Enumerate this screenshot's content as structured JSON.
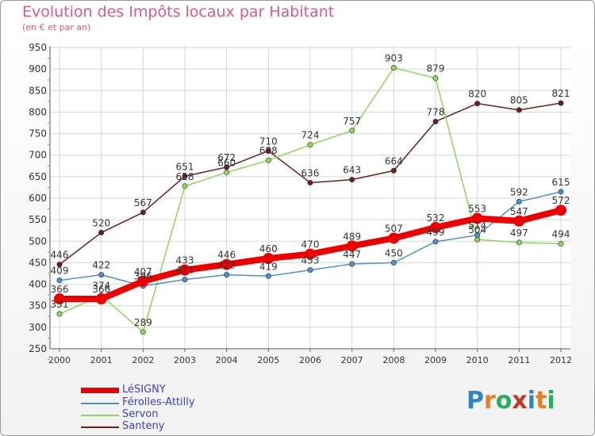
{
  "header": {
    "title": "Evolution des Impôts locaux par Habitant",
    "subtitle": "(en € et par an)"
  },
  "logo": {
    "text": "Proxiti",
    "letters": [
      "P",
      "r",
      "o",
      "x",
      "i",
      "t",
      "i"
    ],
    "colors": [
      "#2e86c1",
      "#e67e22",
      "#27ae60",
      "#c0392b",
      "#2e86c1",
      "#e67e22",
      "#27ae60"
    ]
  },
  "chart_data": {
    "type": "line",
    "title": "Evolution des Impôts locaux par Habitant",
    "subtitle": "(en € et par an)",
    "xlabel": "",
    "ylabel": "",
    "x": [
      "2000",
      "2001",
      "2002",
      "2003",
      "2004",
      "2005",
      "2006",
      "2007",
      "2008",
      "2009",
      "2010",
      "2011",
      "2012"
    ],
    "ylim": [
      250,
      950
    ],
    "yticks": [
      250,
      300,
      350,
      400,
      450,
      500,
      550,
      600,
      650,
      700,
      750,
      800,
      850,
      900,
      950
    ],
    "grid": true,
    "legend_position": "bottom-left",
    "series": [
      {
        "name": "LéSIGNY",
        "color": "#ee0000",
        "values": [
          366,
          366,
          407,
          433,
          446,
          460,
          470,
          489,
          507,
          532,
          553,
          547,
          572
        ],
        "labels": [
          "366",
          "366",
          "407",
          "433",
          "446",
          "460",
          "470",
          "489",
          "507",
          "532",
          "553",
          "547",
          "572"
        ]
      },
      {
        "name": "Férolles-Attilly",
        "color": "#4f8fcf",
        "values": [
          409,
          422,
          396,
          411,
          422,
          419,
          433,
          447,
          450,
          499,
          514,
          592,
          615
        ],
        "labels": [
          "409",
          "422",
          "396",
          "411",
          "422",
          "419",
          "433",
          "447",
          "450",
          "499",
          "514",
          "592",
          "615"
        ]
      },
      {
        "name": "Servon",
        "color": "#8cd85a",
        "values": [
          331,
          374,
          289,
          628,
          660,
          688,
          724,
          757,
          903,
          879,
          504,
          497,
          494
        ],
        "labels": [
          "331",
          "374",
          "289",
          "628",
          "660",
          "688",
          "724",
          "757",
          "903",
          "879",
          "504",
          "497",
          "494"
        ]
      },
      {
        "name": "Santeny",
        "color": "#6b1f1f",
        "values": [
          446,
          520,
          567,
          651,
          672,
          710,
          636,
          643,
          664,
          778,
          820,
          805,
          821
        ],
        "labels": [
          "446",
          "520",
          "567",
          "651",
          "672",
          "710",
          "636",
          "643",
          "664",
          "778",
          "820",
          "805",
          "821"
        ]
      }
    ]
  }
}
